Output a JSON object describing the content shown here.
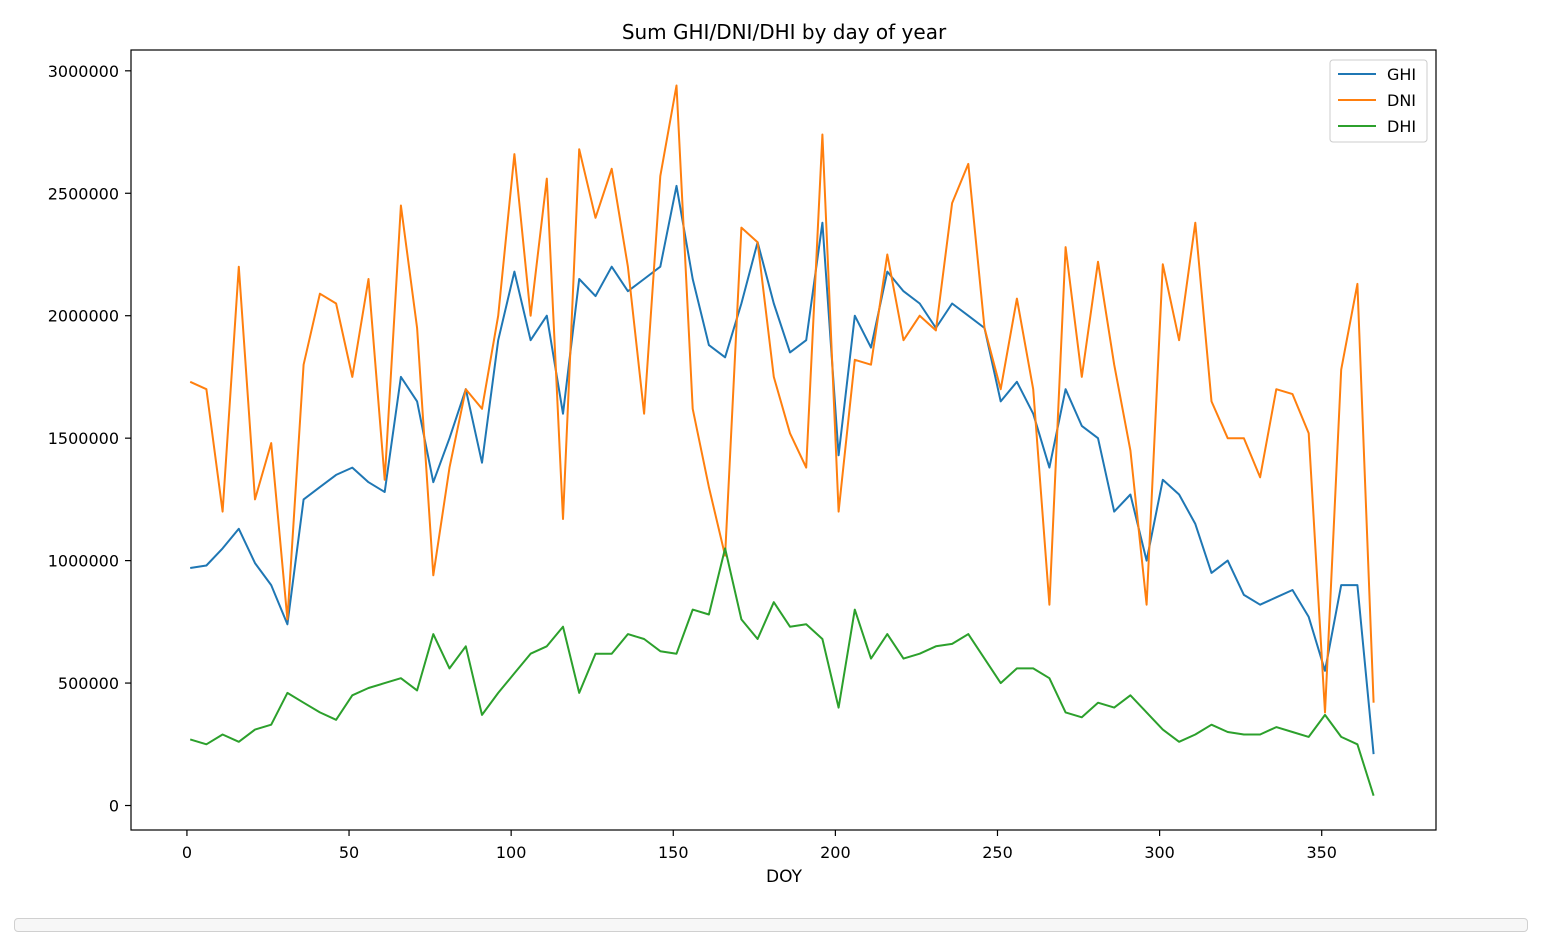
{
  "chart_data": {
    "type": "line",
    "title": "Sum GHI/DNI/DHI by day of year",
    "xlabel": "DOY",
    "ylabel": "",
    "xlim": [
      -17.25,
      385.25
    ],
    "ylim": [
      -100000,
      3085000
    ],
    "x_ticks": [
      0,
      50,
      100,
      150,
      200,
      250,
      300,
      350
    ],
    "y_ticks": [
      0,
      500000,
      1000000,
      1500000,
      2000000,
      2500000,
      3000000
    ],
    "grid": false,
    "legend_position": "upper right",
    "x": [
      1,
      6,
      11,
      16,
      21,
      26,
      31,
      36,
      41,
      46,
      51,
      56,
      61,
      66,
      71,
      76,
      81,
      86,
      91,
      96,
      101,
      106,
      111,
      116,
      121,
      126,
      131,
      136,
      141,
      146,
      151,
      156,
      161,
      166,
      171,
      176,
      181,
      186,
      191,
      196,
      201,
      206,
      211,
      216,
      221,
      226,
      231,
      236,
      241,
      246,
      251,
      256,
      261,
      266,
      271,
      276,
      281,
      286,
      291,
      296,
      301,
      306,
      311,
      316,
      321,
      326,
      331,
      336,
      341,
      346,
      351,
      356,
      361,
      366
    ],
    "series": [
      {
        "name": "GHI",
        "color": "#1f77b4",
        "values": [
          970000,
          980000,
          1050000,
          1130000,
          990000,
          900000,
          740000,
          1250000,
          1300000,
          1350000,
          1380000,
          1320000,
          1280000,
          1750000,
          1650000,
          1320000,
          1500000,
          1700000,
          1400000,
          1900000,
          2180000,
          1900000,
          2000000,
          1600000,
          2150000,
          2080000,
          2200000,
          2100000,
          2150000,
          2200000,
          2530000,
          2150000,
          1880000,
          1830000,
          2050000,
          2300000,
          2050000,
          1850000,
          1900000,
          2380000,
          1430000,
          2000000,
          1870000,
          2180000,
          2100000,
          2050000,
          1950000,
          2050000,
          2000000,
          1950000,
          1650000,
          1730000,
          1600000,
          1380000,
          1700000,
          1550000,
          1500000,
          1200000,
          1270000,
          1000000,
          1330000,
          1270000,
          1150000,
          950000,
          1000000,
          860000,
          820000,
          850000,
          880000,
          770000,
          550000,
          900000,
          900000,
          210000
        ]
      },
      {
        "name": "DNI",
        "color": "#ff7f0e",
        "values": [
          1730000,
          1700000,
          1200000,
          2200000,
          1250000,
          1480000,
          760000,
          1800000,
          2090000,
          2050000,
          1750000,
          2150000,
          1330000,
          2450000,
          1950000,
          940000,
          1380000,
          1700000,
          1620000,
          2000000,
          2660000,
          2000000,
          2560000,
          1170000,
          2680000,
          2400000,
          2600000,
          2200000,
          1600000,
          2570000,
          2940000,
          1620000,
          1300000,
          1020000,
          2360000,
          2300000,
          1750000,
          1520000,
          1380000,
          2740000,
          1200000,
          1820000,
          1800000,
          2250000,
          1900000,
          2000000,
          1940000,
          2460000,
          2620000,
          1950000,
          1700000,
          2070000,
          1700000,
          820000,
          2280000,
          1750000,
          2220000,
          1800000,
          1450000,
          820000,
          2210000,
          1900000,
          2380000,
          1650000,
          1500000,
          1500000,
          1340000,
          1700000,
          1680000,
          1520000,
          380000,
          1780000,
          2130000,
          420000
        ]
      },
      {
        "name": "DHI",
        "color": "#2ca02c",
        "values": [
          270000,
          250000,
          290000,
          260000,
          310000,
          330000,
          460000,
          420000,
          380000,
          350000,
          450000,
          480000,
          500000,
          520000,
          470000,
          700000,
          560000,
          650000,
          370000,
          460000,
          540000,
          620000,
          650000,
          730000,
          460000,
          620000,
          620000,
          700000,
          680000,
          630000,
          620000,
          800000,
          780000,
          1050000,
          760000,
          680000,
          830000,
          730000,
          740000,
          680000,
          400000,
          800000,
          600000,
          700000,
          600000,
          620000,
          650000,
          660000,
          700000,
          600000,
          500000,
          560000,
          560000,
          520000,
          380000,
          360000,
          420000,
          400000,
          450000,
          380000,
          310000,
          260000,
          290000,
          330000,
          300000,
          290000,
          290000,
          320000,
          300000,
          280000,
          370000,
          280000,
          250000,
          40000
        ]
      }
    ]
  }
}
